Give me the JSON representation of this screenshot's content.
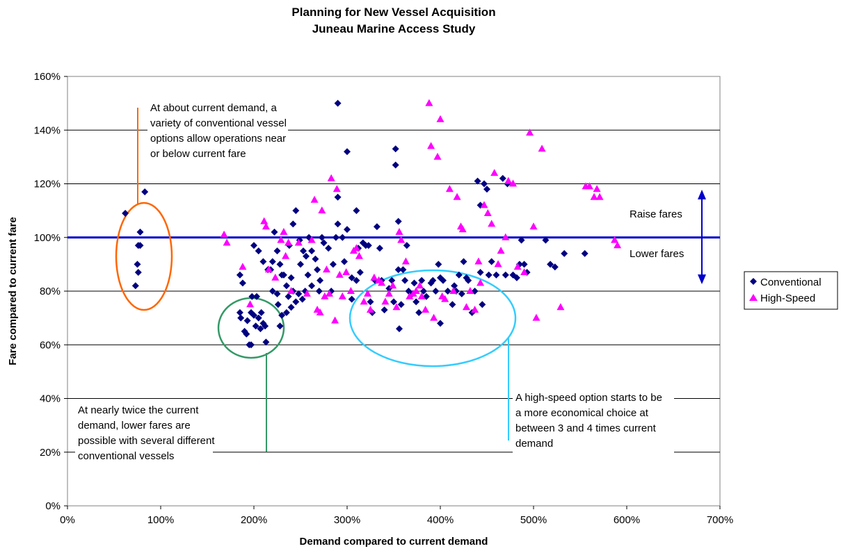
{
  "chart_data": {
    "type": "scatter",
    "title": [
      "Planning for New Vessel Acquisition",
      "Juneau Marine Access Study"
    ],
    "xlabel": "Demand compared to current demand",
    "ylabel": "Fare compared to current fare",
    "xlim": [
      0,
      700
    ],
    "ylim": [
      0,
      160
    ],
    "x_ticks": [
      "0%",
      "100%",
      "200%",
      "300%",
      "400%",
      "500%",
      "600%",
      "700%"
    ],
    "y_ticks": [
      "0%",
      "20%",
      "40%",
      "60%",
      "80%",
      "100%",
      "120%",
      "140%",
      "160%"
    ],
    "grid": "horizontal",
    "legend_position": "right",
    "reference_line": {
      "y": 100,
      "color": "#0000CC"
    },
    "series": [
      {
        "name": "Conventional",
        "marker": "diamond",
        "color": "#000080",
        "points": [
          [
            62,
            109
          ],
          [
            83,
            117
          ],
          [
            78,
            102
          ],
          [
            76,
            97
          ],
          [
            78,
            97
          ],
          [
            75,
            90
          ],
          [
            76,
            87
          ],
          [
            73,
            82
          ],
          [
            185,
            72
          ],
          [
            186,
            70
          ],
          [
            190,
            65
          ],
          [
            192,
            64
          ],
          [
            195,
            60
          ],
          [
            197,
            60
          ],
          [
            193,
            69
          ],
          [
            200,
            71
          ],
          [
            202,
            67
          ],
          [
            205,
            70
          ],
          [
            207,
            66
          ],
          [
            210,
            68
          ],
          [
            212,
            67
          ],
          [
            213,
            61
          ],
          [
            208,
            72
          ],
          [
            197,
            72
          ],
          [
            185,
            86
          ],
          [
            188,
            83
          ],
          [
            198,
            78
          ],
          [
            203,
            78
          ],
          [
            200,
            97
          ],
          [
            205,
            95
          ],
          [
            210,
            91
          ],
          [
            215,
            88
          ],
          [
            218,
            88
          ],
          [
            220,
            91
          ],
          [
            222,
            102
          ],
          [
            225,
            95
          ],
          [
            228,
            90
          ],
          [
            230,
            86
          ],
          [
            232,
            86
          ],
          [
            235,
            82
          ],
          [
            237,
            78
          ],
          [
            240,
            85
          ],
          [
            242,
            80
          ],
          [
            220,
            80
          ],
          [
            225,
            79
          ],
          [
            226,
            75
          ],
          [
            230,
            71
          ],
          [
            228,
            67
          ],
          [
            235,
            72
          ],
          [
            240,
            74
          ],
          [
            245,
            76
          ],
          [
            248,
            79
          ],
          [
            252,
            77
          ],
          [
            255,
            80
          ],
          [
            258,
            86
          ],
          [
            262,
            82
          ],
          [
            238,
            97
          ],
          [
            242,
            105
          ],
          [
            245,
            110
          ],
          [
            249,
            99
          ],
          [
            250,
            90
          ],
          [
            253,
            95
          ],
          [
            256,
            93
          ],
          [
            259,
            100
          ],
          [
            262,
            95
          ],
          [
            266,
            92
          ],
          [
            268,
            88
          ],
          [
            270,
            80
          ],
          [
            271,
            84
          ],
          [
            273,
            100
          ],
          [
            275,
            98
          ],
          [
            280,
            96
          ],
          [
            283,
            80
          ],
          [
            285,
            90
          ],
          [
            288,
            100
          ],
          [
            290,
            105
          ],
          [
            290,
            115
          ],
          [
            290,
            150
          ],
          [
            295,
            100
          ],
          [
            297,
            91
          ],
          [
            300,
            103
          ],
          [
            300,
            132
          ],
          [
            305,
            85
          ],
          [
            305,
            77
          ],
          [
            310,
            110
          ],
          [
            310,
            84
          ],
          [
            312,
            96
          ],
          [
            314,
            87
          ],
          [
            317,
            98
          ],
          [
            320,
            97
          ],
          [
            323,
            97
          ],
          [
            325,
            76
          ],
          [
            327,
            72
          ],
          [
            330,
            84
          ],
          [
            332,
            104
          ],
          [
            335,
            96
          ],
          [
            337,
            84
          ],
          [
            340,
            73
          ],
          [
            345,
            81
          ],
          [
            348,
            84
          ],
          [
            350,
            76
          ],
          [
            352,
            133
          ],
          [
            352,
            127
          ],
          [
            355,
            106
          ],
          [
            355,
            88
          ],
          [
            356,
            66
          ],
          [
            358,
            75
          ],
          [
            360,
            88
          ],
          [
            362,
            84
          ],
          [
            364,
            97
          ],
          [
            366,
            80
          ],
          [
            370,
            79
          ],
          [
            372,
            83
          ],
          [
            374,
            76
          ],
          [
            377,
            72
          ],
          [
            380,
            84
          ],
          [
            382,
            80
          ],
          [
            385,
            78
          ],
          [
            390,
            83
          ],
          [
            392,
            84
          ],
          [
            395,
            80
          ],
          [
            398,
            90
          ],
          [
            400,
            85
          ],
          [
            400,
            68
          ],
          [
            403,
            84
          ],
          [
            408,
            80
          ],
          [
            413,
            75
          ],
          [
            415,
            82
          ],
          [
            417,
            80
          ],
          [
            420,
            86
          ],
          [
            423,
            79
          ],
          [
            425,
            91
          ],
          [
            428,
            85
          ],
          [
            430,
            84
          ],
          [
            434,
            72
          ],
          [
            437,
            80
          ],
          [
            440,
            121
          ],
          [
            443,
            112
          ],
          [
            443,
            87
          ],
          [
            445,
            75
          ],
          [
            447,
            120
          ],
          [
            450,
            118
          ],
          [
            452,
            86
          ],
          [
            455,
            91
          ],
          [
            460,
            86
          ],
          [
            467,
            122
          ],
          [
            470,
            86
          ],
          [
            472,
            120
          ],
          [
            478,
            86
          ],
          [
            482,
            85
          ],
          [
            485,
            90
          ],
          [
            487,
            99
          ],
          [
            490,
            90
          ],
          [
            493,
            87
          ],
          [
            513,
            99
          ],
          [
            518,
            90
          ],
          [
            523,
            89
          ],
          [
            533,
            94
          ],
          [
            555,
            94
          ]
        ]
      },
      {
        "name": "High-Speed",
        "marker": "triangle",
        "color": "#FF00FF",
        "points": [
          [
            168,
            101
          ],
          [
            171,
            98
          ],
          [
            188,
            89
          ],
          [
            196,
            75
          ],
          [
            211,
            106
          ],
          [
            213,
            104
          ],
          [
            216,
            88
          ],
          [
            223,
            85
          ],
          [
            229,
            99
          ],
          [
            232,
            102
          ],
          [
            234,
            93
          ],
          [
            237,
            98
          ],
          [
            240,
            80
          ],
          [
            248,
            98
          ],
          [
            257,
            79
          ],
          [
            262,
            99
          ],
          [
            265,
            114
          ],
          [
            268,
            73
          ],
          [
            271,
            72
          ],
          [
            273,
            110
          ],
          [
            276,
            78
          ],
          [
            278,
            88
          ],
          [
            281,
            79
          ],
          [
            283,
            122
          ],
          [
            287,
            69
          ],
          [
            289,
            118
          ],
          [
            292,
            86
          ],
          [
            295,
            78
          ],
          [
            299,
            87
          ],
          [
            304,
            80
          ],
          [
            307,
            95
          ],
          [
            310,
            96
          ],
          [
            313,
            93
          ],
          [
            318,
            76
          ],
          [
            322,
            79
          ],
          [
            325,
            73
          ],
          [
            329,
            85
          ],
          [
            334,
            84
          ],
          [
            337,
            83
          ],
          [
            341,
            76
          ],
          [
            345,
            79
          ],
          [
            349,
            82
          ],
          [
            353,
            74
          ],
          [
            356,
            102
          ],
          [
            358,
            99
          ],
          [
            363,
            91
          ],
          [
            367,
            78
          ],
          [
            371,
            79
          ],
          [
            374,
            80
          ],
          [
            378,
            82
          ],
          [
            380,
            78
          ],
          [
            384,
            73
          ],
          [
            388,
            150
          ],
          [
            390,
            134
          ],
          [
            393,
            70
          ],
          [
            397,
            130
          ],
          [
            400,
            144
          ],
          [
            402,
            78
          ],
          [
            405,
            77
          ],
          [
            410,
            118
          ],
          [
            414,
            80
          ],
          [
            418,
            115
          ],
          [
            422,
            104
          ],
          [
            424,
            103
          ],
          [
            428,
            74
          ],
          [
            432,
            80
          ],
          [
            437,
            73
          ],
          [
            441,
            91
          ],
          [
            443,
            83
          ],
          [
            447,
            112
          ],
          [
            451,
            109
          ],
          [
            455,
            105
          ],
          [
            458,
            124
          ],
          [
            462,
            90
          ],
          [
            465,
            95
          ],
          [
            470,
            100
          ],
          [
            473,
            121
          ],
          [
            478,
            120
          ],
          [
            483,
            89
          ],
          [
            490,
            87
          ],
          [
            496,
            139
          ],
          [
            500,
            104
          ],
          [
            503,
            70
          ],
          [
            509,
            133
          ],
          [
            529,
            74
          ],
          [
            556,
            119
          ],
          [
            560,
            119
          ],
          [
            565,
            115
          ],
          [
            568,
            118
          ],
          [
            571,
            115
          ],
          [
            587,
            99
          ],
          [
            590,
            97
          ]
        ]
      }
    ],
    "annotations": [
      {
        "id": "current-demand",
        "lines": [
          "At about current demand, a",
          "variety of conventional vessel",
          "options allow operations near",
          "or below current fare"
        ]
      },
      {
        "id": "twice-demand",
        "lines": [
          "At nearly twice the current",
          "demand, lower fares are",
          "possible with several different",
          "conventional vessels"
        ]
      },
      {
        "id": "high-speed",
        "lines": [
          "A high-speed option starts to be",
          "a more economical choice at",
          "between 3 and 4 times current",
          "demand"
        ]
      },
      {
        "id": "raise",
        "lines": [
          "Raise fares"
        ]
      },
      {
        "id": "lower",
        "lines": [
          "Lower fares"
        ]
      }
    ],
    "colors": {
      "orange": "#FF6600",
      "green": "#339966",
      "cyan": "#33CCFF",
      "blue": "#0000CC"
    }
  }
}
